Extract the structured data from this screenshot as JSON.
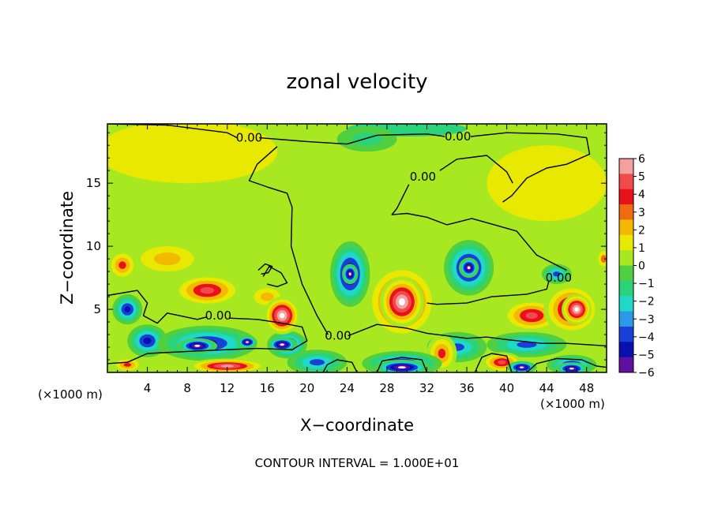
{
  "chart_data": {
    "type": "heatmap",
    "title": "zonal velocity",
    "xlabel": "X−coordinate",
    "ylabel": "Z−coordinate",
    "x_unit_left": "(×1000 m)",
    "x_unit_right": "(×1000 m)",
    "footer": "CONTOUR INTERVAL = 1.000E+01",
    "xlim": [
      0,
      50
    ],
    "ylim": [
      0,
      19.7
    ],
    "xticks": [
      4,
      8,
      12,
      16,
      20,
      24,
      28,
      32,
      36,
      40,
      44,
      48
    ],
    "yticks": [
      5,
      10,
      15
    ],
    "grid": false,
    "colorbar": {
      "placement": "right",
      "min": -6,
      "max": 6,
      "ticks": [
        6,
        5,
        4,
        3,
        2,
        1,
        0,
        -1,
        -2,
        -3,
        -4,
        -5,
        -6
      ],
      "tick_labels": [
        "6",
        "5",
        "4",
        "3",
        "2",
        "1",
        "0",
        "−1",
        "−2",
        "−3",
        "−4",
        "−5",
        "−6"
      ],
      "colors": [
        "#f5a0a0",
        "#f04a4a",
        "#e8101a",
        "#f06a10",
        "#f5b800",
        "#e8e800",
        "#a8e820",
        "#50d040",
        "#2ad27a",
        "#20d8c8",
        "#2a9ae8",
        "#1840d8",
        "#0a10b0",
        "#6010a0"
      ]
    },
    "field_blobs": [
      {
        "x": 25,
        "z": 10,
        "v": 0.6,
        "r": [
          22,
          10
        ]
      },
      {
        "x": 8,
        "z": 17.5,
        "v": 0.9,
        "r": [
          9,
          2.5
        ]
      },
      {
        "x": 44,
        "z": 15,
        "v": 1.0,
        "r": [
          6,
          3
        ]
      },
      {
        "x": 26,
        "z": 18.5,
        "v": -1.6,
        "r": [
          3,
          1
        ]
      },
      {
        "x": 30,
        "z": 19.3,
        "v": -1.0,
        "r": [
          6,
          0.6
        ]
      },
      {
        "x": 6,
        "z": 9,
        "v": 2.5,
        "r": [
          4,
          1.5
        ]
      },
      {
        "x": 1.5,
        "z": 8.5,
        "v": 3.5,
        "r": [
          1.5,
          1.2
        ]
      },
      {
        "x": 10,
        "z": 6.5,
        "v": 4.5,
        "r": [
          3.5,
          1.3
        ]
      },
      {
        "x": 16,
        "z": 6,
        "v": 2.5,
        "r": [
          2,
          1
        ]
      },
      {
        "x": 17.5,
        "z": 4.5,
        "v": 7.0,
        "r": [
          1.8,
          1.5
        ]
      },
      {
        "x": 2,
        "z": 5,
        "v": -4.5,
        "r": [
          1.5,
          1.2
        ]
      },
      {
        "x": 4,
        "z": 2.5,
        "v": -5.0,
        "r": [
          2,
          1.3
        ]
      },
      {
        "x": 10,
        "z": 2.3,
        "v": -5.0,
        "r": [
          5,
          1.4
        ]
      },
      {
        "x": 18,
        "z": 2.2,
        "v": -5.5,
        "r": [
          2,
          1.1
        ]
      },
      {
        "x": 9,
        "z": 2.1,
        "v": -7.0,
        "r": [
          2,
          0.6
        ]
      },
      {
        "x": 14,
        "z": 2.4,
        "v": -7.0,
        "r": [
          1,
          0.5
        ]
      },
      {
        "x": 17.5,
        "z": 2.2,
        "v": -7.0,
        "r": [
          1.5,
          0.6
        ]
      },
      {
        "x": 24.3,
        "z": 7.8,
        "v": -5.5,
        "r": [
          2,
          2.6
        ]
      },
      {
        "x": 24.3,
        "z": 7.8,
        "v": -7.0,
        "r": [
          0.8,
          0.8
        ]
      },
      {
        "x": 29.5,
        "z": 5.6,
        "v": 5.5,
        "r": [
          3.6,
          3
        ]
      },
      {
        "x": 29.5,
        "z": 5.6,
        "v": 7.0,
        "r": [
          2.2,
          2
        ]
      },
      {
        "x": 36.2,
        "z": 8.3,
        "v": -5.5,
        "r": [
          2.5,
          2.2
        ]
      },
      {
        "x": 36.2,
        "z": 8.3,
        "v": -7.0,
        "r": [
          1,
          0.8
        ]
      },
      {
        "x": 35,
        "z": 2,
        "v": -3.5,
        "r": [
          3,
          1.2
        ]
      },
      {
        "x": 33.5,
        "z": 1.5,
        "v": 3.5,
        "r": [
          1.5,
          1.5
        ]
      },
      {
        "x": 42.5,
        "z": 4.5,
        "v": 4.5,
        "r": [
          3,
          1.3
        ]
      },
      {
        "x": 46.5,
        "z": 5,
        "v": 5.5,
        "r": [
          2.8,
          2
        ]
      },
      {
        "x": 47,
        "z": 5,
        "v": 7.0,
        "r": [
          1.5,
          1.2
        ]
      },
      {
        "x": 45,
        "z": 7.8,
        "v": -3.5,
        "r": [
          1.5,
          0.8
        ]
      },
      {
        "x": 42,
        "z": 2.2,
        "v": -3.5,
        "r": [
          4,
          1
        ]
      },
      {
        "x": 2,
        "z": 0.6,
        "v": 3.5,
        "r": [
          1.5,
          0.6
        ]
      },
      {
        "x": 12,
        "z": 0.5,
        "v": 5.5,
        "r": [
          4,
          0.6
        ]
      },
      {
        "x": 21,
        "z": 0.8,
        "v": -4.0,
        "r": [
          3,
          1
        ]
      },
      {
        "x": 29.5,
        "z": 0.7,
        "v": -4.5,
        "r": [
          4,
          1
        ]
      },
      {
        "x": 29.5,
        "z": 0.4,
        "v": -7.0,
        "r": [
          2.8,
          0.6
        ]
      },
      {
        "x": 39.5,
        "z": 0.8,
        "v": 4.5,
        "r": [
          2,
          0.8
        ]
      },
      {
        "x": 41.5,
        "z": 0.4,
        "v": -7.0,
        "r": [
          1.5,
          0.5
        ]
      },
      {
        "x": 46.5,
        "z": 0.6,
        "v": -4.5,
        "r": [
          2.5,
          0.8
        ]
      },
      {
        "x": 46.5,
        "z": 0.3,
        "v": -7.0,
        "r": [
          1.6,
          0.5
        ]
      },
      {
        "x": 49.7,
        "z": 9,
        "v": 3.0,
        "r": [
          0.8,
          0.9
        ]
      }
    ],
    "contour_labels": [
      {
        "text": "0.00",
        "x": 14.2,
        "z": 18.6
      },
      {
        "text": "0.00",
        "x": 35.1,
        "z": 18.7
      },
      {
        "text": "0.00",
        "x": 31.6,
        "z": 15.5
      },
      {
        "text": "0.00",
        "x": 45.2,
        "z": 7.5
      },
      {
        "text": "0.00",
        "x": 11.1,
        "z": 4.5
      },
      {
        "text": "0.00",
        "x": 23.1,
        "z": 2.9
      }
    ],
    "zero_contours": [
      [
        [
          0,
          19.7
        ],
        [
          6,
          19.6
        ],
        [
          12,
          19
        ],
        [
          13,
          18.6
        ]
      ],
      [
        [
          15.2,
          18.6
        ],
        [
          20,
          18.3
        ],
        [
          24,
          18.1
        ],
        [
          27,
          18.8
        ],
        [
          32,
          18.9
        ],
        [
          33.8,
          18.7
        ]
      ],
      [
        [
          36.4,
          18.7
        ],
        [
          40,
          19
        ],
        [
          45,
          18.9
        ],
        [
          48,
          18.6
        ],
        [
          48.3,
          17.3
        ],
        [
          46,
          16.5
        ],
        [
          44,
          16.2
        ],
        [
          42,
          15.4
        ],
        [
          40.5,
          14
        ],
        [
          39.6,
          13.5
        ]
      ],
      [
        [
          30.2,
          14.9
        ],
        [
          29,
          13
        ],
        [
          28.5,
          12.5
        ],
        [
          30,
          12.6
        ],
        [
          32,
          12.3
        ],
        [
          34,
          11.7
        ],
        [
          36.5,
          12.2
        ],
        [
          41,
          11.2
        ],
        [
          43,
          9.3
        ],
        [
          46,
          8.1
        ]
      ],
      [
        [
          33.3,
          16
        ],
        [
          35,
          16.9
        ],
        [
          38,
          17.2
        ],
        [
          40,
          15.9
        ],
        [
          40.6,
          15
        ]
      ],
      [
        [
          44.2,
          7.2
        ],
        [
          44,
          6.6
        ],
        [
          42,
          6.2
        ],
        [
          38.5,
          6
        ],
        [
          36,
          5.5
        ],
        [
          33,
          5.4
        ],
        [
          32,
          5.5
        ]
      ],
      [
        [
          0,
          6.1
        ],
        [
          3,
          6.5
        ],
        [
          4,
          5.5
        ],
        [
          3.6,
          4.5
        ],
        [
          5,
          3.9
        ],
        [
          6,
          4.7
        ],
        [
          9,
          4.2
        ],
        [
          10,
          4.4
        ]
      ],
      [
        [
          12.2,
          4.3
        ],
        [
          15,
          4.2
        ],
        [
          17.5,
          3.9
        ],
        [
          19.5,
          3.6
        ],
        [
          20,
          2.5
        ],
        [
          18.5,
          1.8
        ],
        [
          15,
          1.9
        ],
        [
          9,
          1.7
        ],
        [
          4,
          1.5
        ],
        [
          2,
          0.8
        ],
        [
          0,
          0.7
        ]
      ],
      [
        [
          17,
          17.9
        ],
        [
          15,
          16.5
        ],
        [
          14.2,
          15.2
        ],
        [
          16,
          14.7
        ],
        [
          18,
          14.2
        ],
        [
          18.5,
          13.1
        ],
        [
          18.4,
          10
        ],
        [
          19.5,
          7
        ],
        [
          21,
          4.5
        ],
        [
          22.1,
          3
        ]
      ],
      [
        [
          24.1,
          2.9
        ],
        [
          27,
          3.8
        ],
        [
          30,
          3.5
        ],
        [
          32,
          3.1
        ],
        [
          36,
          2.7
        ],
        [
          38,
          2.8
        ],
        [
          40,
          2.6
        ],
        [
          43.5,
          2.3
        ],
        [
          46,
          2.3
        ],
        [
          50,
          2.1
        ]
      ],
      [
        [
          15.6,
          7.6
        ],
        [
          16.2,
          8.4
        ],
        [
          17.4,
          7.9
        ],
        [
          18,
          7.1
        ],
        [
          17,
          6.8
        ],
        [
          16,
          7
        ]
      ],
      [
        [
          15.1,
          8.1
        ],
        [
          15.8,
          8.6
        ],
        [
          16.5,
          8.4
        ],
        [
          16.1,
          7.9
        ],
        [
          15.4,
          7.8
        ]
      ],
      [
        [
          21.6,
          0
        ],
        [
          22,
          0.6
        ],
        [
          23,
          1
        ],
        [
          24.5,
          0.8
        ],
        [
          25,
          0
        ]
      ],
      [
        [
          27,
          0
        ],
        [
          27.5,
          0.9
        ],
        [
          29.5,
          1.2
        ],
        [
          31.5,
          1
        ],
        [
          32,
          0
        ]
      ],
      [
        [
          36.8,
          0
        ],
        [
          37.5,
          1.2
        ],
        [
          38.5,
          1.5
        ],
        [
          40,
          1.3
        ],
        [
          40.5,
          0
        ]
      ],
      [
        [
          42,
          0
        ],
        [
          43,
          0.7
        ],
        [
          45,
          1.1
        ],
        [
          47.5,
          1
        ],
        [
          49,
          0.5
        ],
        [
          50,
          0.4
        ]
      ]
    ]
  }
}
